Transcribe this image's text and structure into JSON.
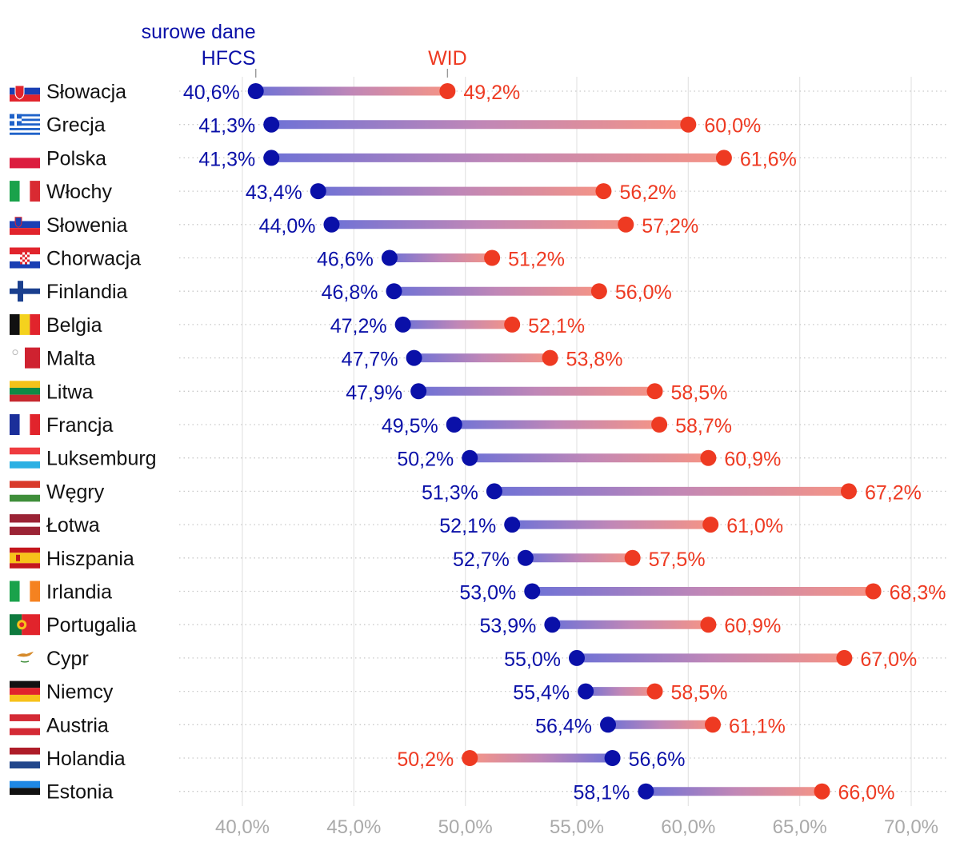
{
  "chart_data": {
    "type": "dumbbell",
    "title": "",
    "xlabel": "",
    "ylabel": "",
    "xlim": [
      37.5,
      71.5
    ],
    "xticks": [
      40,
      45,
      50,
      55,
      60,
      65,
      70
    ],
    "xtick_labels": [
      "40,0%",
      "45,0%",
      "50,0%",
      "55,0%",
      "60,0%",
      "65,0%",
      "70,0%"
    ],
    "grid": true,
    "series": [
      {
        "key": "hfcs",
        "name_line1": "surowe dane",
        "name_line2": "HFCS",
        "color": "#0a10a8"
      },
      {
        "key": "wid",
        "name_line1": "WID",
        "color": "#ee3a22"
      }
    ],
    "legend_anchor_country": "Słowacja",
    "rows": [
      {
        "country": "Słowacja",
        "flag": "slovakia-flag",
        "hfcs": 40.6,
        "hfcs_label": "40,6%",
        "wid": 49.2,
        "wid_label": "49,2%"
      },
      {
        "country": "Grecja",
        "flag": "greece-flag",
        "hfcs": 41.3,
        "hfcs_label": "41,3%",
        "wid": 60.0,
        "wid_label": "60,0%"
      },
      {
        "country": "Polska",
        "flag": "poland-flag",
        "hfcs": 41.3,
        "hfcs_label": "41,3%",
        "wid": 61.6,
        "wid_label": "61,6%"
      },
      {
        "country": "Włochy",
        "flag": "italy-flag",
        "hfcs": 43.4,
        "hfcs_label": "43,4%",
        "wid": 56.2,
        "wid_label": "56,2%"
      },
      {
        "country": "Słowenia",
        "flag": "slovenia-flag",
        "hfcs": 44.0,
        "hfcs_label": "44,0%",
        "wid": 57.2,
        "wid_label": "57,2%"
      },
      {
        "country": "Chorwacja",
        "flag": "croatia-flag",
        "hfcs": 46.6,
        "hfcs_label": "46,6%",
        "wid": 51.2,
        "wid_label": "51,2%"
      },
      {
        "country": "Finlandia",
        "flag": "finland-flag",
        "hfcs": 46.8,
        "hfcs_label": "46,8%",
        "wid": 56.0,
        "wid_label": "56,0%"
      },
      {
        "country": "Belgia",
        "flag": "belgium-flag",
        "hfcs": 47.2,
        "hfcs_label": "47,2%",
        "wid": 52.1,
        "wid_label": "52,1%"
      },
      {
        "country": "Malta",
        "flag": "malta-flag",
        "hfcs": 47.7,
        "hfcs_label": "47,7%",
        "wid": 53.8,
        "wid_label": "53,8%"
      },
      {
        "country": "Litwa",
        "flag": "lithuania-flag",
        "hfcs": 47.9,
        "hfcs_label": "47,9%",
        "wid": 58.5,
        "wid_label": "58,5%"
      },
      {
        "country": "Francja",
        "flag": "france-flag",
        "hfcs": 49.5,
        "hfcs_label": "49,5%",
        "wid": 58.7,
        "wid_label": "58,7%"
      },
      {
        "country": "Luksemburg",
        "flag": "luxembourg-flag",
        "hfcs": 50.2,
        "hfcs_label": "50,2%",
        "wid": 60.9,
        "wid_label": "60,9%"
      },
      {
        "country": "Węgry",
        "flag": "hungary-flag",
        "hfcs": 51.3,
        "hfcs_label": "51,3%",
        "wid": 67.2,
        "wid_label": "67,2%"
      },
      {
        "country": "Łotwa",
        "flag": "latvia-flag",
        "hfcs": 52.1,
        "hfcs_label": "52,1%",
        "wid": 61.0,
        "wid_label": "61,0%"
      },
      {
        "country": "Hiszpania",
        "flag": "spain-flag",
        "hfcs": 52.7,
        "hfcs_label": "52,7%",
        "wid": 57.5,
        "wid_label": "57,5%"
      },
      {
        "country": "Irlandia",
        "flag": "ireland-flag",
        "hfcs": 53.0,
        "hfcs_label": "53,0%",
        "wid": 68.3,
        "wid_label": "68,3%"
      },
      {
        "country": "Portugalia",
        "flag": "portugal-flag",
        "hfcs": 53.9,
        "hfcs_label": "53,9%",
        "wid": 60.9,
        "wid_label": "60,9%"
      },
      {
        "country": "Cypr",
        "flag": "cyprus-flag",
        "hfcs": 55.0,
        "hfcs_label": "55,0%",
        "wid": 67.0,
        "wid_label": "67,0%"
      },
      {
        "country": "Niemcy",
        "flag": "germany-flag",
        "hfcs": 55.4,
        "hfcs_label": "55,4%",
        "wid": 58.5,
        "wid_label": "58,5%"
      },
      {
        "country": "Austria",
        "flag": "austria-flag",
        "hfcs": 56.4,
        "hfcs_label": "56,4%",
        "wid": 61.1,
        "wid_label": "61,1%"
      },
      {
        "country": "Holandia",
        "flag": "netherlands-flag",
        "hfcs": 56.6,
        "hfcs_label": "56,6%",
        "wid": 50.2,
        "wid_label": "50,2%"
      },
      {
        "country": "Estonia",
        "flag": "estonia-flag",
        "hfcs": 58.1,
        "hfcs_label": "58,1%",
        "wid": 66.0,
        "wid_label": "66,0%"
      }
    ]
  }
}
